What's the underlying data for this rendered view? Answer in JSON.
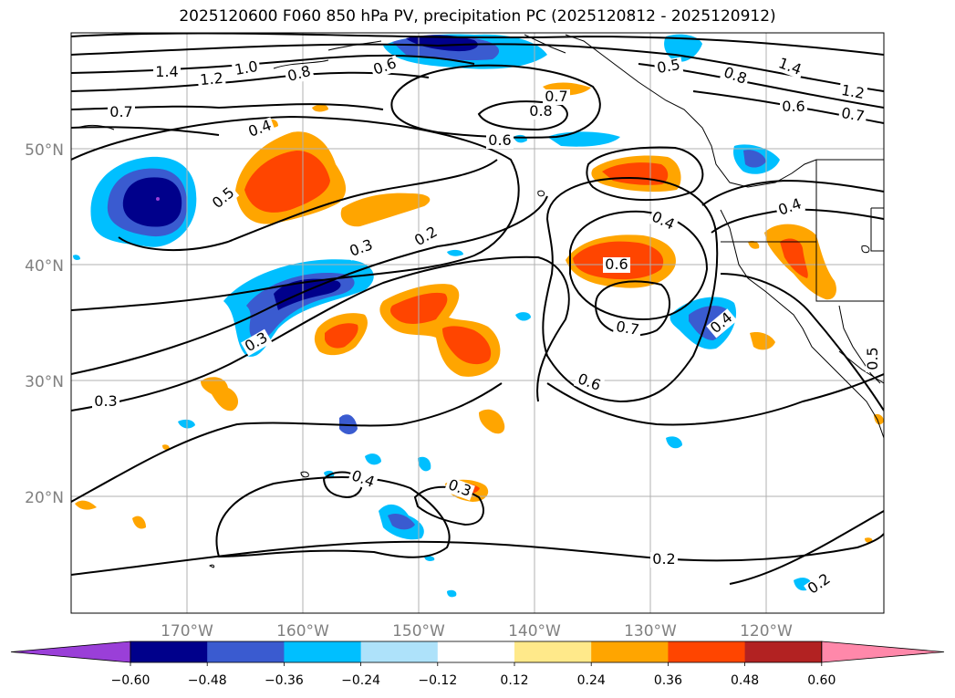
{
  "title": "2025120600 F060 850 hPa PV, precipitation PC (2025120812 - 2025120912)",
  "map": {
    "projection": "lat-lon",
    "lon_range": [
      -180,
      -110
    ],
    "lat_range": [
      10,
      60
    ],
    "grid": true,
    "colors": {
      "coastline": "#000000",
      "contour": "#000000",
      "gridline": "#b0b0b0",
      "tick_label": "#808080"
    }
  },
  "axes": {
    "lat_ticks": [
      "50°N",
      "40°N",
      "30°N",
      "20°N"
    ],
    "lon_ticks": [
      "170°W",
      "160°W",
      "150°W",
      "140°W",
      "130°W",
      "120°W"
    ]
  },
  "pv_contour_labels": [
    "1.4",
    "1.2",
    "1.0",
    "0.8",
    "0.6",
    "0.7",
    "0.4",
    "0.5",
    "0.3",
    "0.2",
    "0.8",
    "0.7",
    "0.6",
    "0.4",
    "0.6",
    "0.7",
    "0.6",
    "0.4",
    "0.3",
    "0.4",
    "0.3",
    "0.3",
    "0.2",
    "0.2",
    "1.4",
    "1.2",
    "0.8",
    "0.6",
    "0.7",
    "0.5",
    "0.4",
    "0.5"
  ],
  "colorbar": {
    "ticks": [
      "−0.60",
      "−0.48",
      "−0.36",
      "−0.24",
      "−0.12",
      "0.12",
      "0.24",
      "0.36",
      "0.48",
      "0.60"
    ],
    "colors": [
      "#9a3fd8",
      "#00008b",
      "#3a5bd0",
      "#00bfff",
      "#aee2fa",
      "#ffffff",
      "#ffe98a",
      "#ffa500",
      "#ff4500",
      "#b22222",
      "#ff88aa"
    ],
    "extend": "both"
  }
}
